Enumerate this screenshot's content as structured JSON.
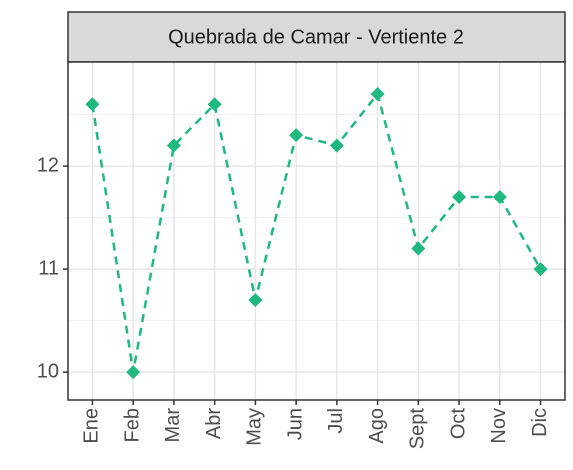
{
  "chart_data": {
    "type": "line",
    "title": "Quebrada de Camar - Vertiente 2",
    "categories": [
      "Ene",
      "Feb",
      "Mar",
      "Abr",
      "May",
      "Jun",
      "Jul",
      "Ago",
      "Sept",
      "Oct",
      "Nov",
      "Dic"
    ],
    "values": [
      12.6,
      10.0,
      12.2,
      12.6,
      10.7,
      12.3,
      12.2,
      12.7,
      11.2,
      11.7,
      11.7,
      11.0
    ],
    "color": "#1fb97f",
    "line_style": "dashed",
    "ylim": [
      9.73,
      13.01
    ],
    "yticks": [
      10,
      11,
      12
    ],
    "grid": true
  }
}
